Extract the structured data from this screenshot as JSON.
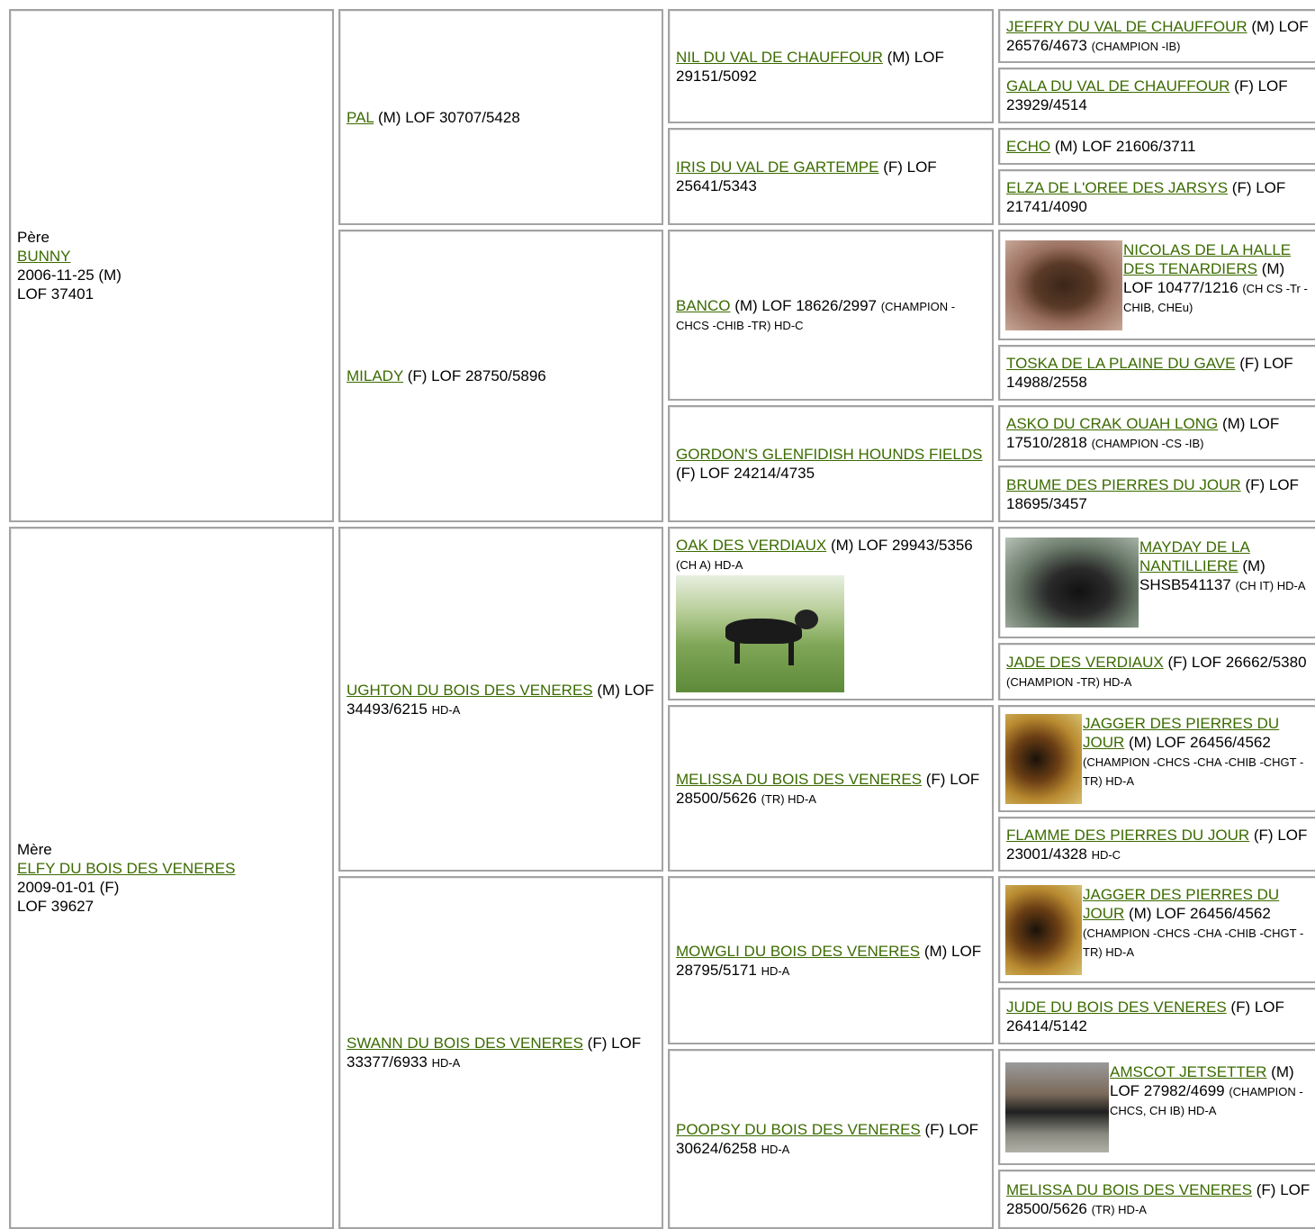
{
  "generations": [
    [
      {
        "label": "Père",
        "name": "BUNNY",
        "birth": "2006-11-25 (M)",
        "lof": "LOF 37401"
      },
      {
        "label": "Mère",
        "name": "ELFY DU BOIS DES VENERES",
        "birth": "2009-01-01 (F)",
        "lof": "LOF 39627"
      }
    ],
    [
      {
        "name": "PAL",
        "info": "(M) LOF 30707/5428"
      },
      {
        "name": "MILADY",
        "info": "(F) LOF 28750/5896"
      },
      {
        "name": "UGHTON DU BOIS DES VENERES",
        "info": "(M) LOF 34493/6215",
        "titles": "HD-A"
      },
      {
        "name": "SWANN DU BOIS DES VENERES",
        "info": "(F) LOF 33377/6933",
        "titles": "HD-A"
      }
    ],
    [
      {
        "name": "NIL DU VAL DE CHAUFFOUR",
        "info": "(M) LOF 29151/5092"
      },
      {
        "name": "IRIS DU VAL DE GARTEMPE",
        "info": "(F) LOF 25641/5343"
      },
      {
        "name": "BANCO",
        "info": "(M) LOF 18626/2997",
        "titles": "(CHAMPION -CHCS -CHIB -TR) HD-C"
      },
      {
        "name": "GORDON'S GLENFIDISH HOUNDS FIELDS",
        "info": "(F) LOF 24214/4735"
      },
      {
        "name": "OAK DES VERDIAUX",
        "info": "(M) LOF 29943/5356",
        "titles": "(CH A) HD-A"
      },
      {
        "name": "MELISSA DU BOIS DES VENERES",
        "info": "(F) LOF 28500/5626",
        "titles": "(TR) HD-A"
      },
      {
        "name": "MOWGLI DU BOIS DES VENERES",
        "info": "(M) LOF 28795/5171",
        "titles": "HD-A"
      },
      {
        "name": "POOPSY DU BOIS DES VENERES",
        "info": "(F) LOF 30624/6258",
        "titles": "HD-A"
      }
    ],
    [
      {
        "name": "JEFFRY DU VAL DE CHAUFFOUR",
        "info": "(M) LOF 26576/4673",
        "titles": "(CHAMPION -IB)"
      },
      {
        "name": "GALA DU VAL DE CHAUFFOUR",
        "info": "(F) LOF 23929/4514"
      },
      {
        "name": "ECHO",
        "info": "(M) LOF 21606/3711"
      },
      {
        "name": "ELZA DE L'OREE DES JARSYS",
        "info": "(F) LOF 21741/4090"
      },
      {
        "name": "NICOLAS DE LA HALLE DES TENARDIERS",
        "info": "(M) LOF 10477/1216",
        "titles": "(CH CS -Tr -CHIB, CHEu)"
      },
      {
        "name": "TOSKA DE LA PLAINE DU GAVE",
        "info": "(F) LOF 14988/2558"
      },
      {
        "name": "ASKO DU CRAK OUAH LONG",
        "info": "(M) LOF 17510/2818",
        "titles": "(CHAMPION -CS -IB)"
      },
      {
        "name": "BRUME DES PIERRES DU JOUR",
        "info": "(F) LOF 18695/3457"
      },
      {
        "name": "MAYDAY DE LA NANTILLIERE",
        "info": "(M) SHSB541137",
        "titles": "(CH IT) HD-A"
      },
      {
        "name": "JADE DES VERDIAUX",
        "info": "(F) LOF 26662/5380",
        "titles": "(CHAMPION -TR) HD-A"
      },
      {
        "name": "JAGGER DES PIERRES DU JOUR",
        "info": "(M) LOF 26456/4562",
        "titles": "(CHAMPION -CHCS -CHA -CHIB -CHGT -TR) HD-A"
      },
      {
        "name": "FLAMME DES PIERRES DU JOUR",
        "info": "(F) LOF 23001/4328",
        "titles": "HD-C"
      },
      {
        "name": "JAGGER DES PIERRES DU JOUR",
        "info": "(M) LOF 26456/4562",
        "titles": "(CHAMPION -CHCS -CHA -CHIB -CHGT -TR) HD-A"
      },
      {
        "name": "JUDE DU BOIS DES VENERES",
        "info": "(F) LOF 26414/5142"
      },
      {
        "name": "AMSCOT JETSETTER",
        "info": "(M) LOF 27982/4699",
        "titles": "(CHAMPION -CHCS, CH IB) HD-A"
      },
      {
        "name": "MELISSA DU BOIS DES VENERES",
        "info": "(F) LOF 28500/5626",
        "titles": "(TR) HD-A"
      }
    ]
  ]
}
